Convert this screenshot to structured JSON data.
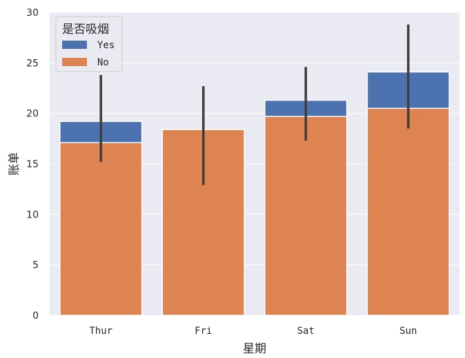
{
  "chart_data": {
    "type": "bar",
    "categories": [
      "Thur",
      "Fri",
      "Sat",
      "Sun"
    ],
    "series": [
      {
        "name": "Yes",
        "values": [
          19.2,
          18.4,
          21.3,
          24.1
        ],
        "ci": [
          [
            15.2,
            23.8
          ],
          [
            12.9,
            22.7
          ],
          [
            17.3,
            24.6
          ],
          [
            18.5,
            28.8
          ]
        ],
        "color": "#4C72B0"
      },
      {
        "name": "No",
        "values": [
          17.1,
          18.4,
          19.7,
          20.5
        ],
        "color": "#DD8452"
      }
    ],
    "title": "",
    "xlabel": "星期",
    "ylabel": "账单",
    "ylim": [
      0,
      30
    ],
    "yticks": [
      0,
      5,
      10,
      15,
      20,
      25,
      30
    ],
    "grid": true,
    "legend_title": "是否吸烟",
    "legend_position": "top-left",
    "background_color": "#EAEAF2",
    "grid_color": "#FFFFFF",
    "error_bar_color": "#3F3F3F"
  }
}
